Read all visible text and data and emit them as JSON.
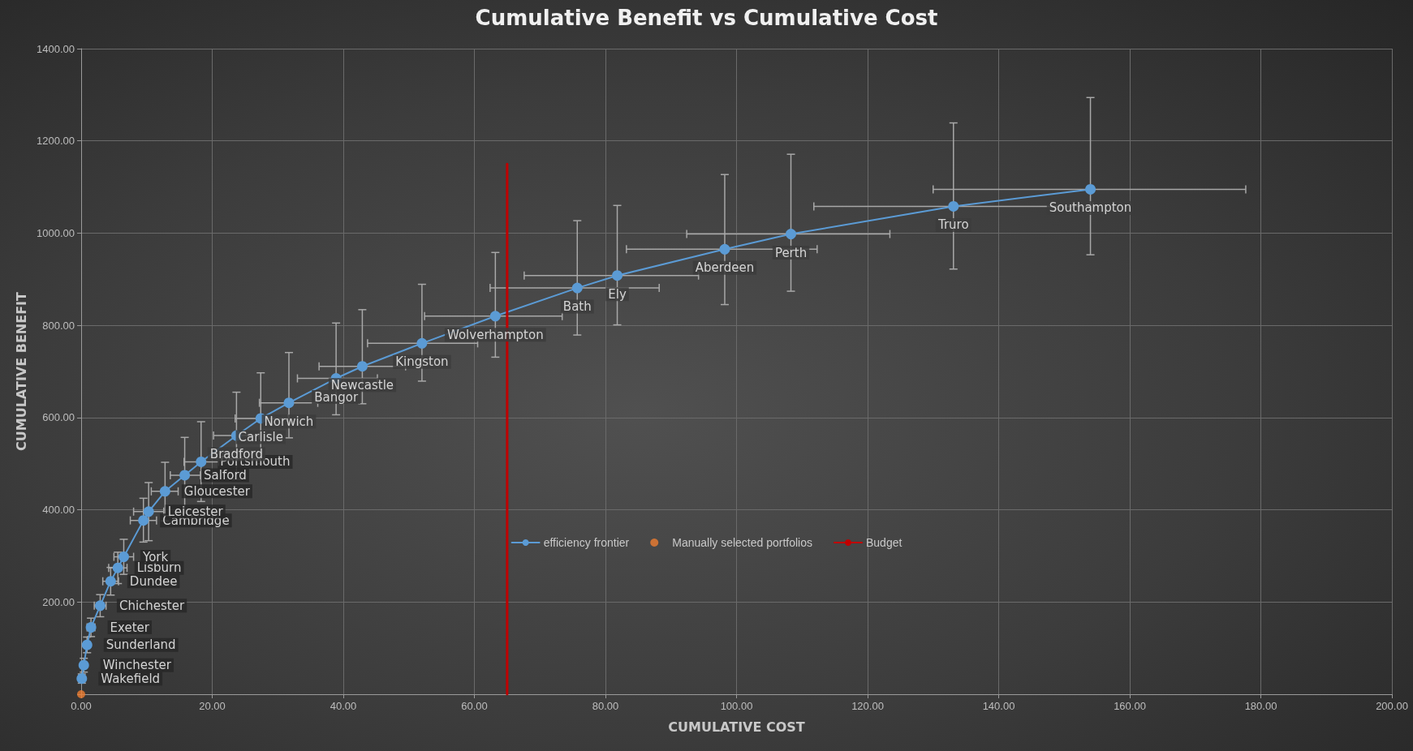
{
  "chart_data": {
    "type": "line",
    "title": "Cumulative Benefit vs Cumulative Cost",
    "xlabel": "CUMULATIVE COST",
    "ylabel": "CUMULATIVE BENEFIT",
    "xlim": [
      0,
      200
    ],
    "xticks": [
      {
        "value": 0,
        "label": "0.00"
      },
      {
        "value": 20,
        "label": "20.00"
      },
      {
        "value": 40,
        "label": "40.00"
      },
      {
        "value": 60,
        "label": "60.00"
      },
      {
        "value": 80,
        "label": "80.00"
      },
      {
        "value": 100,
        "label": "100.00"
      },
      {
        "value": 120,
        "label": "120.00"
      },
      {
        "value": 140,
        "label": "140.00"
      },
      {
        "value": 160,
        "label": "160.00"
      },
      {
        "value": 180,
        "label": "180.00"
      },
      {
        "value": 200,
        "label": "200.00"
      }
    ],
    "ylim": [
      0,
      1400
    ],
    "yticks": [
      {
        "value": 0,
        "label": null
      },
      {
        "value": 200,
        "label": "200.00"
      },
      {
        "value": 400,
        "label": "400.00"
      },
      {
        "value": 600,
        "label": "600.00"
      },
      {
        "value": 800,
        "label": "800.00"
      },
      {
        "value": 1000,
        "label": "1000.00"
      },
      {
        "value": 1200,
        "label": "1200.00"
      },
      {
        "value": 1400,
        "label": "1400.00"
      }
    ],
    "grid": true,
    "legend": "bottom",
    "marker": "circle",
    "series": [
      {
        "name": "efficiency frontier",
        "color": "#5b9bd5",
        "x": [
          0.1,
          0.4,
          0.9,
          1.5,
          2.9,
          4.5,
          5.6,
          6.5,
          9.5,
          10.3,
          12.8,
          15.8,
          18.3,
          23.7,
          27.4,
          31.7,
          38.9,
          42.9,
          52,
          63.2,
          75.7,
          81.8,
          98.2,
          108.3,
          133.1,
          154
        ],
        "values": [
          34,
          63,
          107,
          145,
          192,
          245,
          274,
          298,
          377,
          396,
          440,
          475,
          504,
          561,
          598,
          632,
          685,
          711,
          761,
          820,
          881,
          908,
          965,
          998,
          1058,
          1095
        ],
        "value_labels": [
          "Wakefield",
          "Winchester",
          "Sunderland",
          "Exeter",
          "Chichester",
          "Dundee",
          "Lisburn",
          "York",
          "Cambridge",
          "Leicester",
          "Gloucester",
          "Salford",
          "Portsmouth",
          "Bradford",
          "Carlisle",
          "Norwich",
          "Bangor",
          "Newcastle",
          "Kingston",
          "Wolverhampton",
          "Bath",
          "Ely",
          "Aberdeen",
          "Perth",
          "Truro",
          "Southampton"
        ],
        "errors": [
          [
            24,
            44
          ],
          [
            48,
            78
          ],
          [
            90,
            124
          ],
          [
            125,
            165
          ],
          [
            168,
            216
          ],
          [
            215,
            275
          ],
          [
            240,
            308
          ],
          [
            260,
            336
          ],
          [
            330,
            425
          ],
          [
            333,
            459
          ],
          [
            376,
            503
          ],
          [
            392,
            557
          ],
          [
            418,
            591
          ],
          [
            466,
            655
          ],
          [
            500,
            697
          ],
          [
            556,
            741
          ],
          [
            606,
            805
          ],
          [
            630,
            834
          ],
          [
            679,
            889
          ],
          [
            731,
            958
          ],
          [
            779,
            1027
          ],
          [
            801,
            1060
          ],
          [
            845,
            1127
          ],
          [
            874,
            1171
          ],
          [
            922,
            1239
          ],
          [
            953,
            1294
          ]
        ],
        "xerrors": [
          [
            0,
            0.2
          ],
          [
            0.2,
            0.6
          ],
          [
            0.5,
            1.3
          ],
          [
            0.9,
            2.1
          ],
          [
            2,
            3.8
          ],
          [
            3.3,
            5.7
          ],
          [
            4.2,
            7
          ],
          [
            5,
            8
          ],
          [
            7.5,
            11.5
          ],
          [
            8,
            12.6
          ],
          [
            10.7,
            14.8
          ],
          [
            13.6,
            18.2
          ],
          [
            15.7,
            21
          ],
          [
            20.2,
            27.2
          ],
          [
            23.5,
            31.6
          ],
          [
            27.2,
            36.1
          ],
          [
            33,
            45.2
          ],
          [
            36.3,
            49.5
          ],
          [
            43.7,
            60.5
          ],
          [
            52.4,
            73.4
          ],
          [
            62.4,
            88.2
          ],
          [
            67.6,
            94.2
          ],
          [
            83.2,
            112.3
          ],
          [
            92.4,
            123.4
          ],
          [
            111.8,
            154.4
          ],
          [
            130,
            177.7
          ]
        ]
      },
      {
        "name": "Manually selected portfolios",
        "type": "scatter",
        "color": "#ed7d31",
        "x": [
          0
        ],
        "values": [
          0
        ]
      },
      {
        "name": "Budget",
        "color": "#c00000",
        "marker": "none",
        "x": [
          65,
          65
        ],
        "values": [
          0,
          1150
        ]
      }
    ]
  }
}
